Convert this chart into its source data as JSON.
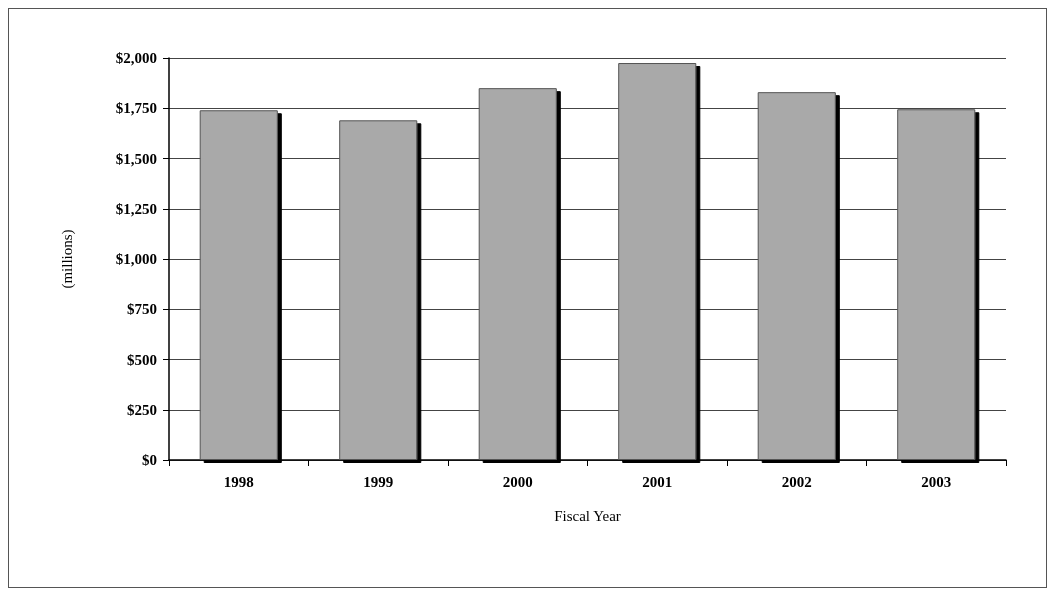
{
  "chart_data": {
    "type": "bar",
    "xlabel": "Fiscal Year",
    "ylabel": "(millions)",
    "categories": [
      "1998",
      "1999",
      "2000",
      "2001",
      "2002",
      "2003"
    ],
    "values": [
      1740,
      1690,
      1850,
      1975,
      1830,
      1745
    ],
    "color": "#a9a9a9",
    "ylim": [
      0,
      2000
    ],
    "yticks": [
      {
        "value": 0,
        "label": "$0"
      },
      {
        "value": 250,
        "label": "$250"
      },
      {
        "value": 500,
        "label": "$500"
      },
      {
        "value": 750,
        "label": "$750"
      },
      {
        "value": 1000,
        "label": "$1,000"
      },
      {
        "value": 1250,
        "label": "$1,250"
      },
      {
        "value": 1500,
        "label": "$1,500"
      },
      {
        "value": 1750,
        "label": "$1,750"
      },
      {
        "value": 2000,
        "label": "$2,000"
      }
    ],
    "grid": "y"
  }
}
